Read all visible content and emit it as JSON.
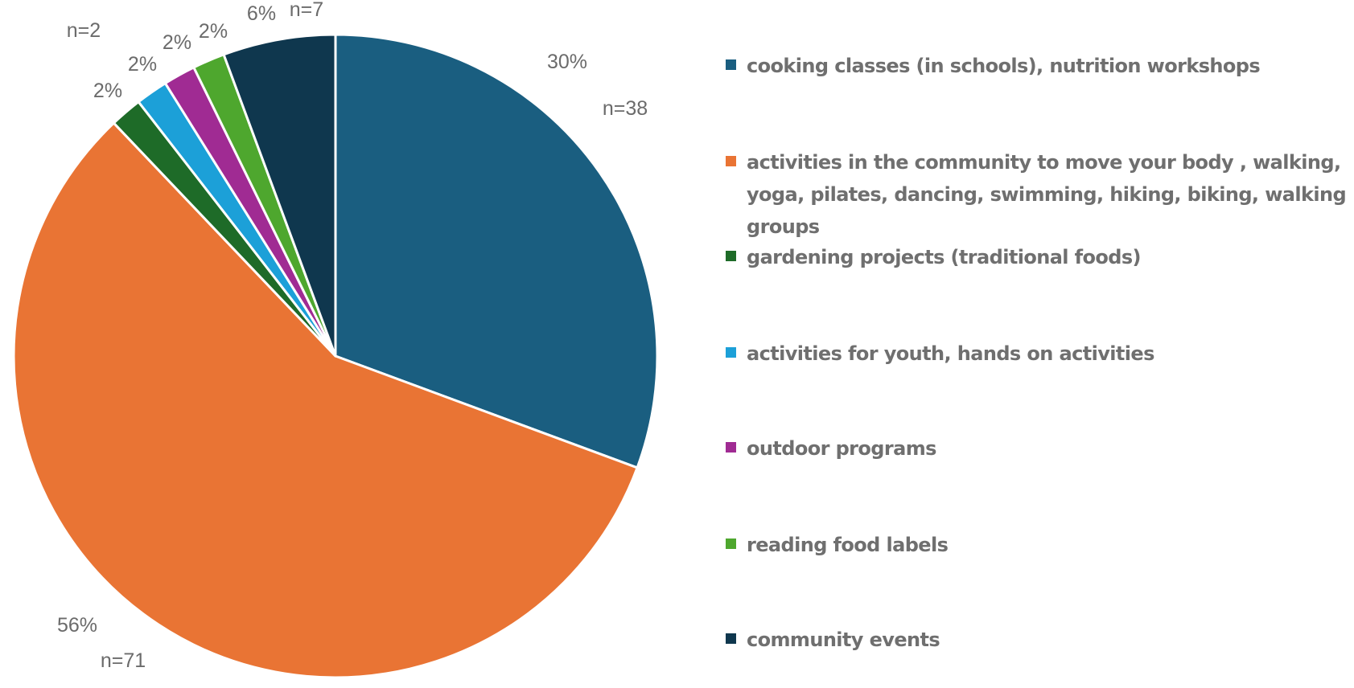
{
  "chart_data": {
    "type": "pie",
    "title": "",
    "legend_position": "right",
    "slices": [
      {
        "label": "cooking classes (in schools), nutrition workshops",
        "value": 38,
        "percent_label": "30%",
        "count_label": "n=38",
        "color": "#1a5e80"
      },
      {
        "label": "activities in the community to move your body , walking, yoga, pilates, dancing, swimming, hiking, biking, walking groups",
        "value": 71,
        "percent_label": "56%",
        "count_label": "n=71",
        "color": "#e97434"
      },
      {
        "label": "gardening projects (traditional foods)",
        "value": 2,
        "percent_label": "2%",
        "count_label": "n=2",
        "color": "#1e6b28"
      },
      {
        "label": "activities for youth, hands on activities",
        "value": 2,
        "percent_label": "2%",
        "count_label": "",
        "color": "#1ca0d8"
      },
      {
        "label": "outdoor programs",
        "value": 2,
        "percent_label": "2%",
        "count_label": "",
        "color": "#a02b93"
      },
      {
        "label": "reading food labels",
        "value": 2,
        "percent_label": "2%",
        "count_label": "",
        "color": "#4ea72e"
      },
      {
        "label": "community events",
        "value": 7,
        "percent_label": "6%",
        "count_label": "n=7",
        "color": "#0f374e"
      }
    ]
  }
}
